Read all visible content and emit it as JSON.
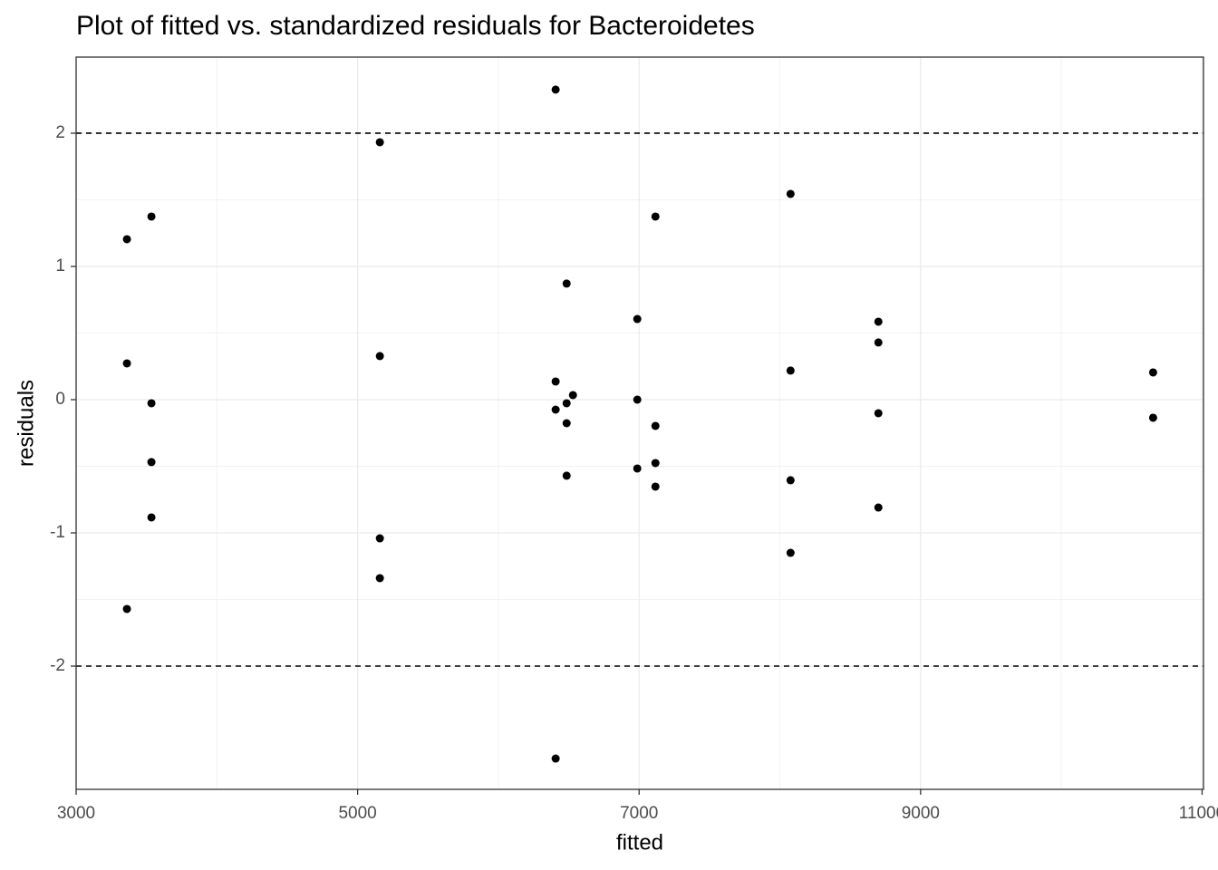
{
  "chart_data": {
    "type": "scatter",
    "title": "Plot of fitted vs. standardized residuals for Bacteroidetes",
    "x_label": "fitted",
    "y_label": "residuals",
    "color": "#000000",
    "xlim": [
      3000,
      11010
    ],
    "ylim": [
      -2.925,
      2.571
    ],
    "xticks": [
      3000,
      5000,
      7000,
      9000,
      {
        "value": 11000,
        "label": "11000"
      }
    ],
    "yticks": [
      -2,
      -1,
      0,
      1,
      2
    ],
    "hlines": [
      -2,
      2
    ],
    "grid": true,
    "x": [
      3361,
      3535,
      3361,
      3535,
      3535,
      3535,
      3361,
      5158,
      5158,
      5158,
      5158,
      6407,
      6485,
      6407,
      6407,
      6485,
      6530,
      6485,
      6485,
      6407,
      6987,
      6987,
      6987,
      7116,
      7116,
      7116,
      7116,
      8076,
      8076,
      8076,
      8076,
      8700,
      8700,
      8700,
      8700,
      10652,
      10652
    ],
    "values": [
      1.204,
      1.374,
      0.272,
      -0.027,
      -0.469,
      -0.884,
      -1.571,
      1.932,
      0.327,
      -1.041,
      -1.34,
      2.327,
      0.871,
      0.136,
      -0.075,
      -0.027,
      0.034,
      -0.177,
      -0.571,
      -2.694,
      0.605,
      0,
      -0.517,
      1.374,
      -0.197,
      -0.476,
      -0.653,
      1.544,
      0.218,
      -0.605,
      -1.15,
      0.585,
      0.429,
      -0.102,
      -0.81,
      0.204,
      -0.136
    ]
  }
}
